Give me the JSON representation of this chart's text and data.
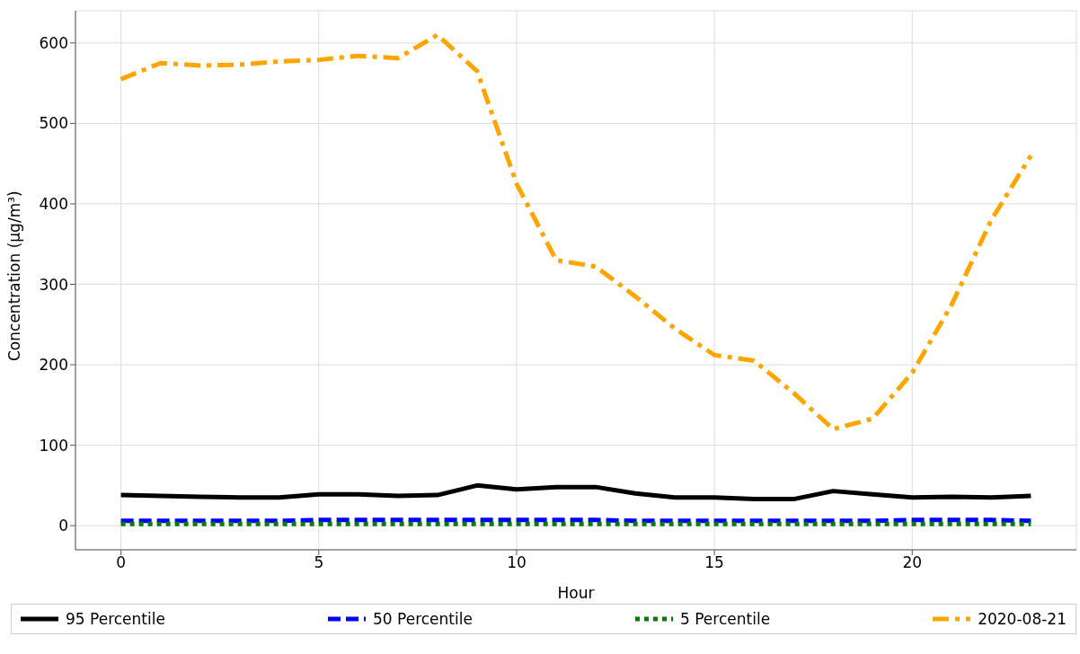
{
  "chart_data": {
    "type": "line",
    "xlabel": "Hour",
    "ylabel": "Concentration (µg/m³)",
    "x": [
      0,
      1,
      2,
      3,
      4,
      5,
      6,
      7,
      8,
      9,
      10,
      11,
      12,
      13,
      14,
      15,
      16,
      17,
      18,
      19,
      20,
      21,
      22,
      23
    ],
    "series": [
      {
        "name": "95 Percentile",
        "color": "#000000",
        "line_style": "solid",
        "values": [
          38,
          37,
          36,
          35,
          35,
          39,
          39,
          37,
          38,
          50,
          45,
          48,
          48,
          40,
          35,
          35,
          33,
          33,
          43,
          39,
          35,
          36,
          35,
          37
        ]
      },
      {
        "name": "50 Percentile",
        "color": "#0000ff",
        "line_style": "dashed",
        "values": [
          6,
          6,
          6,
          6,
          6,
          7,
          7,
          7,
          7,
          7,
          7,
          7,
          7,
          6,
          6,
          6,
          6,
          6,
          6,
          6,
          7,
          7,
          7,
          6
        ]
      },
      {
        "name": "5 Percentile",
        "color": "#008000",
        "line_style": "dotted",
        "values": [
          2,
          2,
          2,
          2,
          2,
          2,
          2,
          2,
          2,
          2,
          2,
          2,
          2,
          2,
          2,
          2,
          2,
          2,
          2,
          2,
          2,
          2,
          2,
          2
        ]
      },
      {
        "name": "2020-08-21",
        "color": "#ffa500",
        "line_style": "dashdot",
        "values": [
          555,
          575,
          572,
          573,
          577,
          579,
          584,
          581,
          610,
          565,
          425,
          330,
          322,
          285,
          245,
          212,
          205,
          165,
          120,
          133,
          190,
          275,
          380,
          460
        ]
      }
    ],
    "xlim": [
      -1.15,
      24.15
    ],
    "xticks": [
      0,
      5,
      10,
      15,
      20
    ],
    "ylim": [
      -30,
      640
    ],
    "yticks": [
      0,
      100,
      200,
      300,
      400,
      500,
      600
    ],
    "grid": true,
    "legend": "bottom",
    "marker": "none"
  }
}
